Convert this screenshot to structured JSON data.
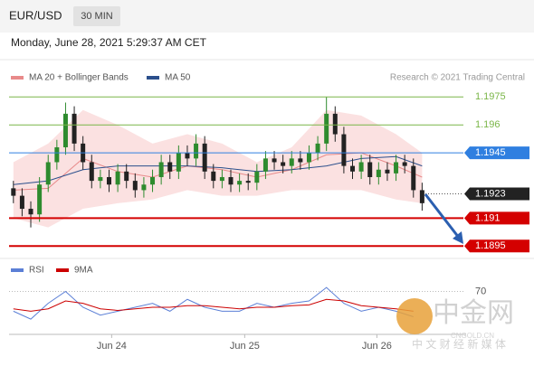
{
  "header": {
    "symbol": "EUR/USD",
    "interval": "30 MIN",
    "timestamp": "Monday, June 28, 2021 5:29:37 AM CET"
  },
  "credit": "Research © 2021 Trading Central",
  "watermark": {
    "brand": "中金网",
    "site": "CNGOLD.CN",
    "slogan": "中 文 财 经 新 媒 体"
  },
  "chart_data": {
    "type": "candlestick",
    "up_color": "#2e8b2e",
    "down_color": "#222222",
    "xlim": [
      -0.5,
      50.5
    ],
    "ylim": [
      1.189,
      1.198
    ],
    "xticks": [
      {
        "value": 11.3,
        "label": "Jun 24"
      },
      {
        "value": 26.6,
        "label": "Jun 25"
      },
      {
        "value": 41.8,
        "label": "Jun 26"
      }
    ],
    "ohlc": [
      [
        1.1926,
        1.193,
        1.1918,
        1.1922
      ],
      [
        1.1922,
        1.1926,
        1.1911,
        1.1915
      ],
      [
        1.1915,
        1.1919,
        1.1905,
        1.1912
      ],
      [
        1.1912,
        1.1932,
        1.1908,
        1.1928
      ],
      [
        1.1928,
        1.1944,
        1.1924,
        1.194
      ],
      [
        1.194,
        1.1952,
        1.1936,
        1.1948
      ],
      [
        1.1948,
        1.1972,
        1.1944,
        1.1966
      ],
      [
        1.1966,
        1.197,
        1.1946,
        1.195
      ],
      [
        1.195,
        1.1954,
        1.1936,
        1.194
      ],
      [
        1.194,
        1.1944,
        1.1926,
        1.193
      ],
      [
        1.193,
        1.1936,
        1.1926,
        1.1932
      ],
      [
        1.1932,
        1.1936,
        1.1924,
        1.1928
      ],
      [
        1.1928,
        1.1939,
        1.1924,
        1.1935
      ],
      [
        1.1935,
        1.1939,
        1.1926,
        1.193
      ],
      [
        1.193,
        1.1934,
        1.1921,
        1.1925
      ],
      [
        1.1925,
        1.1932,
        1.1921,
        1.1928
      ],
      [
        1.1928,
        1.1936,
        1.1924,
        1.1932
      ],
      [
        1.1932,
        1.1944,
        1.1928,
        1.194
      ],
      [
        1.194,
        1.1944,
        1.1931,
        1.1935
      ],
      [
        1.1935,
        1.1949,
        1.1931,
        1.1945
      ],
      [
        1.1945,
        1.1949,
        1.1938,
        1.1942
      ],
      [
        1.1942,
        1.1955,
        1.1938,
        1.195
      ],
      [
        1.195,
        1.1954,
        1.1931,
        1.1935
      ],
      [
        1.1935,
        1.1939,
        1.1926,
        1.193
      ],
      [
        1.193,
        1.1936,
        1.1926,
        1.1932
      ],
      [
        1.1932,
        1.1936,
        1.1924,
        1.1928
      ],
      [
        1.1928,
        1.1934,
        1.1924,
        1.193
      ],
      [
        1.193,
        1.1934,
        1.1925,
        1.1929
      ],
      [
        1.1929,
        1.1939,
        1.1925,
        1.1935
      ],
      [
        1.1935,
        1.1946,
        1.1931,
        1.1942
      ],
      [
        1.1942,
        1.1946,
        1.1936,
        1.194
      ],
      [
        1.194,
        1.1944,
        1.1934,
        1.1938
      ],
      [
        1.1938,
        1.1946,
        1.1934,
        1.1942
      ],
      [
        1.1942,
        1.1946,
        1.1936,
        1.194
      ],
      [
        1.194,
        1.1949,
        1.1936,
        1.1945
      ],
      [
        1.1945,
        1.1954,
        1.1941,
        1.195
      ],
      [
        1.195,
        1.1975,
        1.1946,
        1.1966
      ],
      [
        1.1966,
        1.197,
        1.1951,
        1.1955
      ],
      [
        1.1955,
        1.1959,
        1.1934,
        1.1938
      ],
      [
        1.1938,
        1.1942,
        1.1931,
        1.1935
      ],
      [
        1.1935,
        1.1944,
        1.1931,
        1.194
      ],
      [
        1.194,
        1.1944,
        1.1928,
        1.1932
      ],
      [
        1.1932,
        1.194,
        1.1928,
        1.1936
      ],
      [
        1.1936,
        1.194,
        1.193,
        1.1934
      ],
      [
        1.1934,
        1.1944,
        1.193,
        1.194
      ],
      [
        1.194,
        1.1944,
        1.1934,
        1.1938
      ],
      [
        1.1938,
        1.1942,
        1.1921,
        1.1925
      ],
      [
        1.1925,
        1.1929,
        1.1914,
        1.1918
      ]
    ],
    "series": [
      {
        "name": "MA 20 + Bollinger Bands",
        "color": "#e88a8a",
        "band_color": "#fbe1e1",
        "x": [
          0,
          4,
          8,
          12,
          16,
          20,
          24,
          28,
          32,
          36,
          40,
          44,
          47
        ],
        "values": [
          1.1925,
          1.1926,
          1.1942,
          1.1935,
          1.1932,
          1.1938,
          1.1936,
          1.1932,
          1.1936,
          1.1944,
          1.1945,
          1.1938,
          1.1932
        ],
        "upper": [
          1.194,
          1.195,
          1.1968,
          1.196,
          1.195,
          1.1955,
          1.195,
          1.194,
          1.1948,
          1.1968,
          1.1965,
          1.1955,
          1.1945
        ],
        "lower": [
          1.191,
          1.1905,
          1.1915,
          1.1918,
          1.192,
          1.1925,
          1.1922,
          1.1922,
          1.1925,
          1.1925,
          1.1925,
          1.192,
          1.1918
        ]
      },
      {
        "name": "MA 50",
        "color": "#2b4f8c",
        "x": [
          0,
          4,
          8,
          12,
          16,
          20,
          24,
          28,
          32,
          36,
          40,
          44,
          47
        ],
        "values": [
          1.1928,
          1.193,
          1.1936,
          1.1938,
          1.1938,
          1.1938,
          1.1937,
          1.1935,
          1.1936,
          1.1938,
          1.1942,
          1.1943,
          1.1938
        ]
      }
    ],
    "levels": [
      {
        "value": 1.1975,
        "color": "#7ab648",
        "style": "text"
      },
      {
        "value": 1.196,
        "color": "#7ab648",
        "style": "text"
      },
      {
        "value": 1.1945,
        "color": "#2f7fe0",
        "style": "box"
      },
      {
        "value": 1.1923,
        "color": "#222222",
        "style": "current"
      },
      {
        "value": 1.191,
        "color": "#d40000",
        "style": "box"
      },
      {
        "value": 1.1895,
        "color": "#d40000",
        "style": "box"
      }
    ],
    "rsi": {
      "ylim": [
        10,
        90
      ],
      "yticks": [
        70
      ],
      "x": [
        0,
        2,
        4,
        6,
        8,
        10,
        12,
        14,
        16,
        18,
        20,
        22,
        24,
        26,
        28,
        30,
        32,
        34,
        36,
        38,
        40,
        42,
        44,
        46
      ],
      "series": [
        {
          "name": "RSI",
          "color": "#5b7fd6",
          "values": [
            45,
            35,
            55,
            70,
            50,
            40,
            45,
            50,
            55,
            45,
            60,
            50,
            45,
            45,
            55,
            50,
            55,
            58,
            75,
            55,
            45,
            50,
            45,
            38
          ]
        },
        {
          "name": "9MA",
          "color": "#cc0000",
          "values": [
            48,
            45,
            48,
            58,
            55,
            48,
            46,
            48,
            50,
            50,
            52,
            52,
            50,
            48,
            50,
            50,
            52,
            53,
            60,
            58,
            52,
            50,
            48,
            45
          ]
        }
      ]
    }
  }
}
